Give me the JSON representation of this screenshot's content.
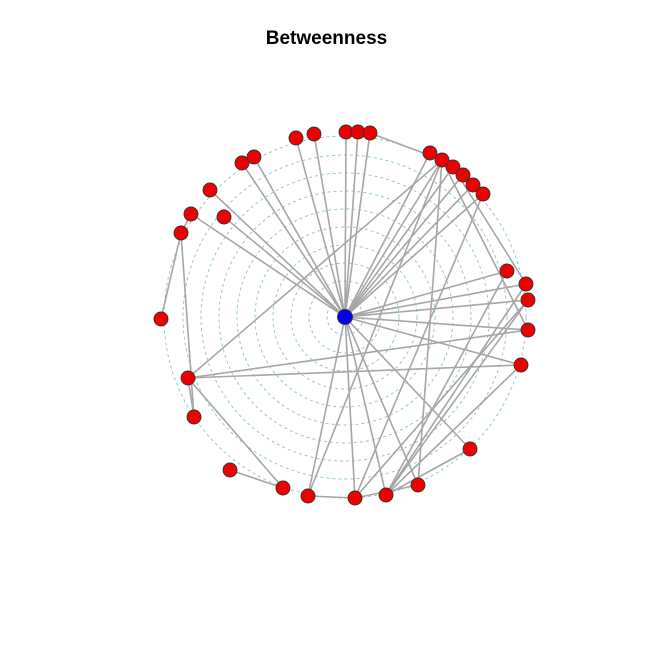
{
  "title": "Betweenness",
  "colors": {
    "ring": "#86c3cf",
    "edge": "#a6a6a6",
    "node": "#ee0000",
    "hub": "#0000ee",
    "node_stroke": "#333333"
  },
  "graph": {
    "layout": "radial",
    "hub": "hub",
    "nodes": [
      {
        "id": "n1"
      },
      {
        "id": "n2"
      },
      {
        "id": "n3"
      },
      {
        "id": "n4"
      },
      {
        "id": "n5"
      },
      {
        "id": "n6"
      },
      {
        "id": "n7"
      },
      {
        "id": "n8"
      },
      {
        "id": "n9"
      },
      {
        "id": "n10"
      },
      {
        "id": "n11"
      },
      {
        "id": "n12"
      },
      {
        "id": "n13"
      },
      {
        "id": "n14"
      },
      {
        "id": "n15"
      },
      {
        "id": "n16"
      },
      {
        "id": "n17"
      },
      {
        "id": "n18"
      },
      {
        "id": "n19"
      },
      {
        "id": "n20"
      },
      {
        "id": "n21"
      },
      {
        "id": "n22"
      },
      {
        "id": "n23"
      },
      {
        "id": "n24"
      },
      {
        "id": "n25"
      },
      {
        "id": "n26"
      },
      {
        "id": "n27"
      },
      {
        "id": "n28"
      },
      {
        "id": "n29"
      },
      {
        "id": "n30"
      },
      {
        "id": "n31"
      },
      {
        "id": "n32"
      },
      {
        "id": "hub"
      }
    ],
    "edges": [
      [
        "hub",
        "n5"
      ],
      [
        "hub",
        "n6"
      ],
      [
        "hub",
        "n7"
      ],
      [
        "hub",
        "n8"
      ],
      [
        "hub",
        "n9"
      ],
      [
        "hub",
        "n10"
      ],
      [
        "hub",
        "n11"
      ],
      [
        "hub",
        "n12"
      ],
      [
        "hub",
        "n13"
      ],
      [
        "hub",
        "n14"
      ],
      [
        "hub",
        "n15"
      ],
      [
        "hub",
        "n16"
      ],
      [
        "hub",
        "n17"
      ],
      [
        "hub",
        "n18"
      ],
      [
        "hub",
        "n19"
      ],
      [
        "hub",
        "n20"
      ],
      [
        "hub",
        "n21"
      ],
      [
        "hub",
        "n22"
      ],
      [
        "hub",
        "n23"
      ],
      [
        "hub",
        "n24"
      ],
      [
        "hub",
        "n25"
      ],
      [
        "hub",
        "n26"
      ],
      [
        "hub",
        "n27"
      ],
      [
        "hub",
        "n28"
      ],
      [
        "hub",
        "n29"
      ],
      [
        "hub",
        "n30"
      ],
      [
        "n16",
        "n30"
      ],
      [
        "n16",
        "n27"
      ],
      [
        "n16",
        "n24"
      ],
      [
        "n16",
        "n20"
      ],
      [
        "n16",
        "n14"
      ],
      [
        "n16",
        "n3"
      ],
      [
        "n29",
        "n30"
      ],
      [
        "n29",
        "n27"
      ],
      [
        "n29",
        "n23"
      ],
      [
        "n29",
        "n20"
      ],
      [
        "n17",
        "n22"
      ],
      [
        "n28",
        "n22"
      ],
      [
        "n28",
        "n26"
      ],
      [
        "n28",
        "n23"
      ],
      [
        "n28",
        "n25"
      ],
      [
        "n28",
        "n21"
      ],
      [
        "n31",
        "n32"
      ],
      [
        "n31",
        "n3"
      ],
      [
        "n3",
        "n4"
      ],
      [
        "n4",
        "n2"
      ],
      [
        "n2",
        "n1"
      ],
      [
        "n3",
        "n24"
      ],
      [
        "n3",
        "n25"
      ],
      [
        "n2",
        "n5"
      ]
    ]
  }
}
